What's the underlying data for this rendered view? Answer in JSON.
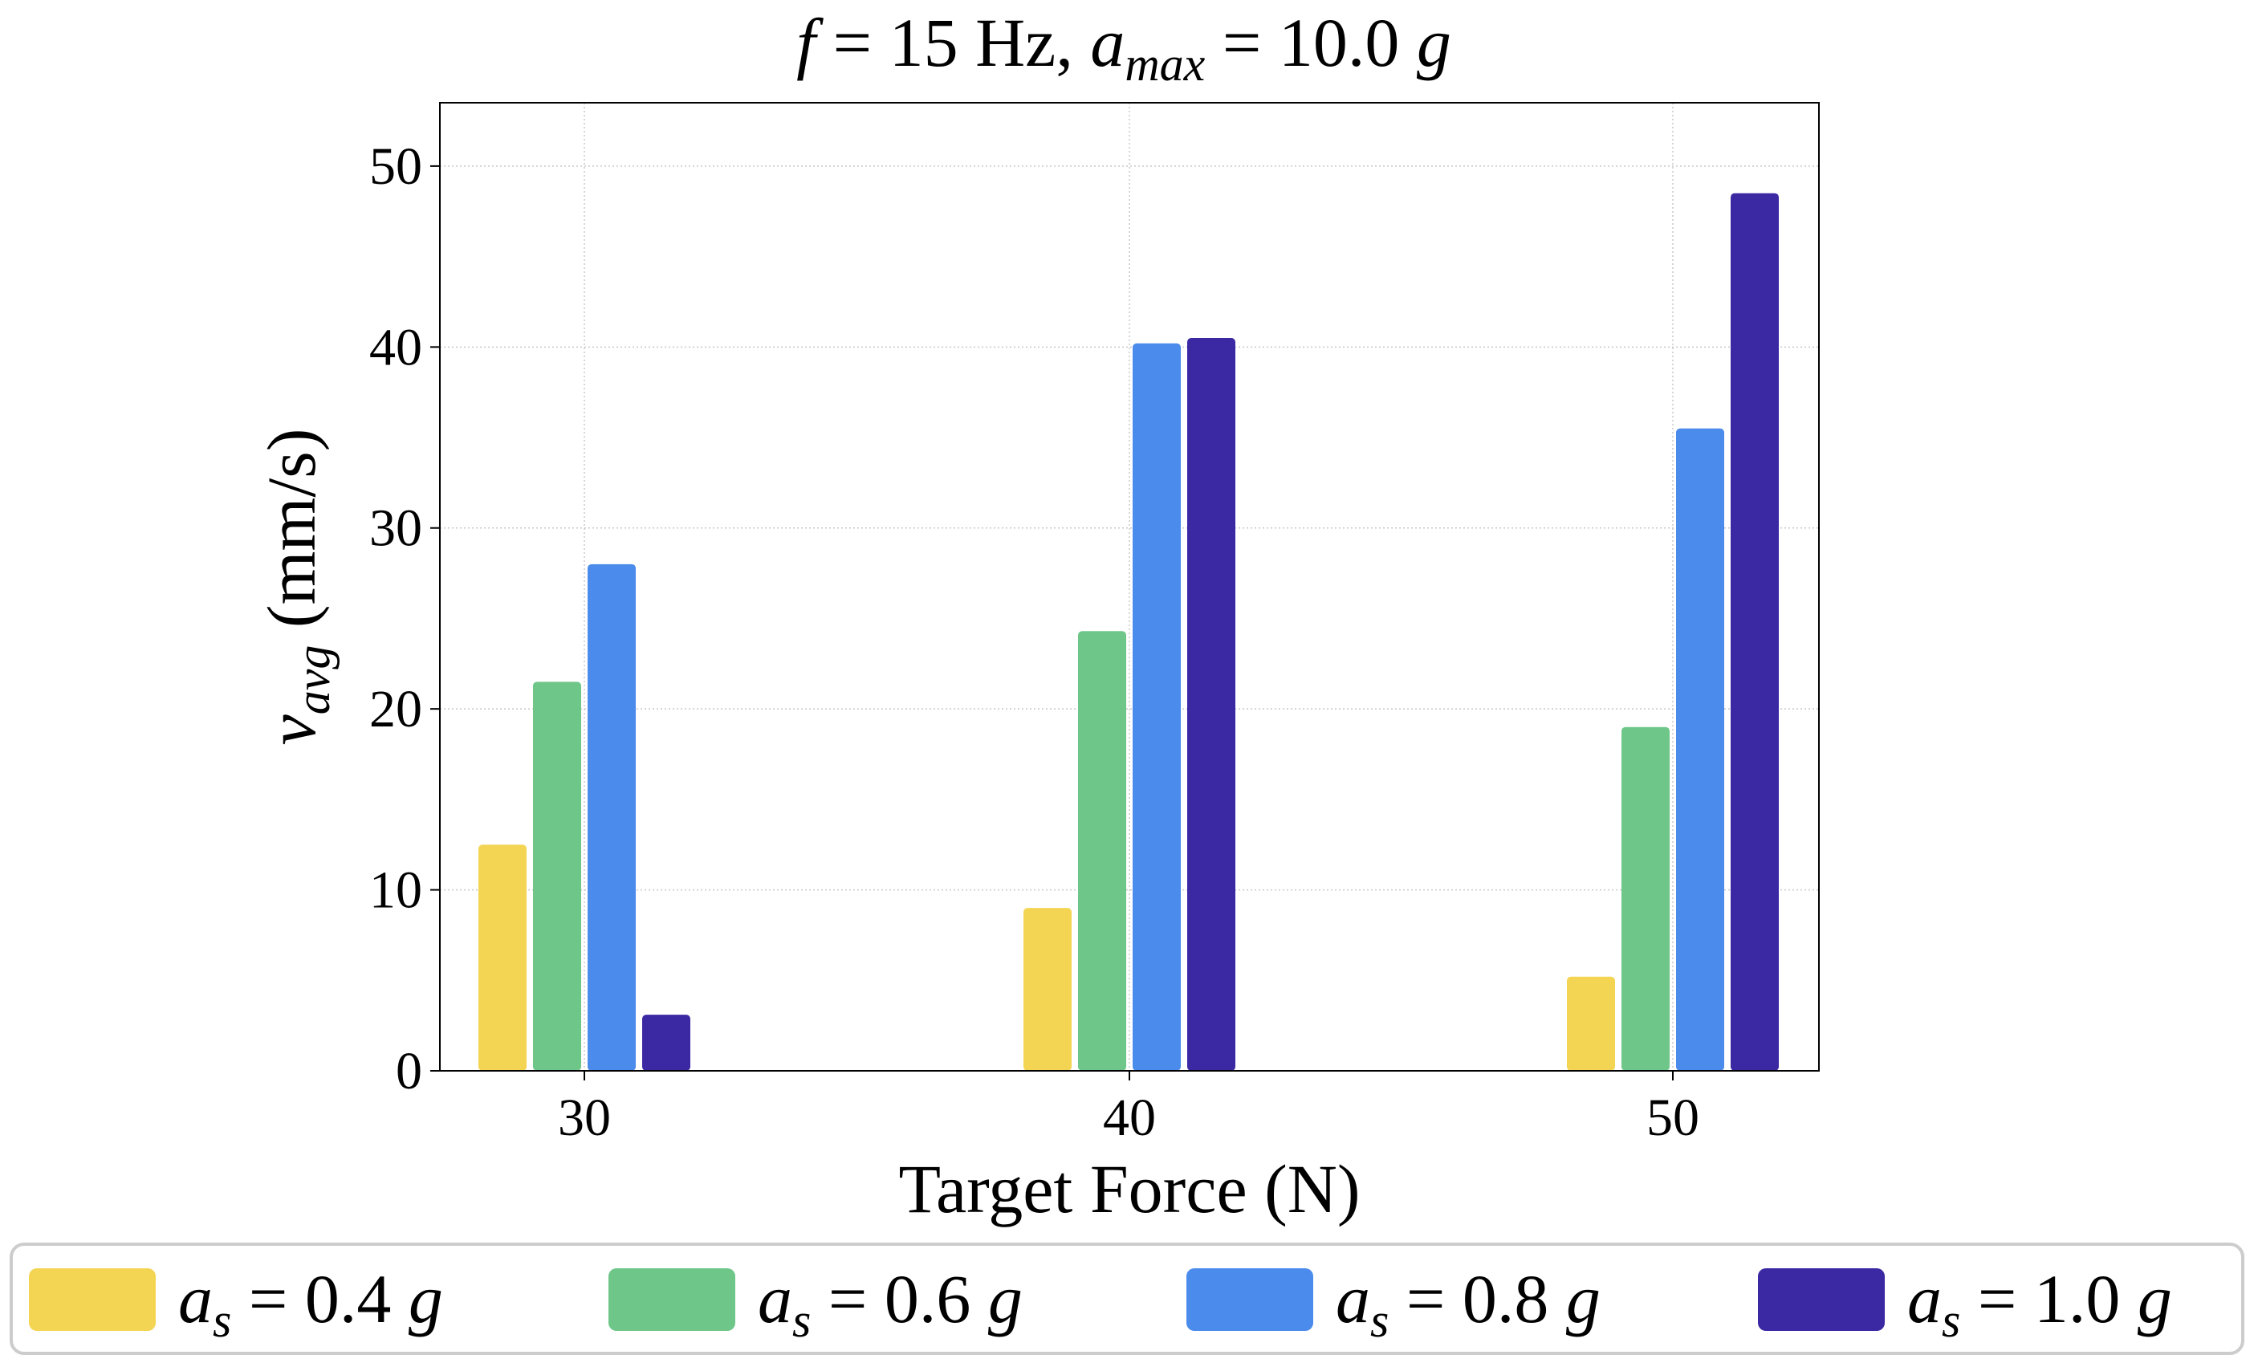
{
  "chart_data": {
    "type": "bar",
    "title": {
      "f_symbol": "f",
      "f_text": " = 15 Hz, ",
      "a_symbol": "a",
      "a_sub": "max",
      "a_text": " = 10.0 ",
      "unit": "g"
    },
    "xlabel": "Target Force (N)",
    "ylabel": {
      "symbol": "v",
      "sub": "avg",
      "unit": " (mm/s)"
    },
    "categories": [
      "30",
      "40",
      "50"
    ],
    "ylim": [
      0,
      53.5
    ],
    "yticks": [
      "0",
      "10",
      "20",
      "30",
      "40",
      "50"
    ],
    "grid": true,
    "legend_position": "bottom",
    "series": [
      {
        "name": "0.4",
        "color": "#f4d553",
        "values": [
          12.5,
          9.0,
          5.2
        ]
      },
      {
        "name": "0.6",
        "color": "#6ec789",
        "values": [
          21.5,
          24.3,
          19.0
        ]
      },
      {
        "name": "0.8",
        "color": "#4a8beb",
        "values": [
          28.0,
          40.2,
          35.5
        ]
      },
      {
        "name": "1.0",
        "color": "#3b28a3",
        "values": [
          3.1,
          40.5,
          48.5
        ]
      }
    ],
    "legend_symbol": "a",
    "legend_sub": "s",
    "legend_eq": " = ",
    "legend_unit": " g"
  }
}
